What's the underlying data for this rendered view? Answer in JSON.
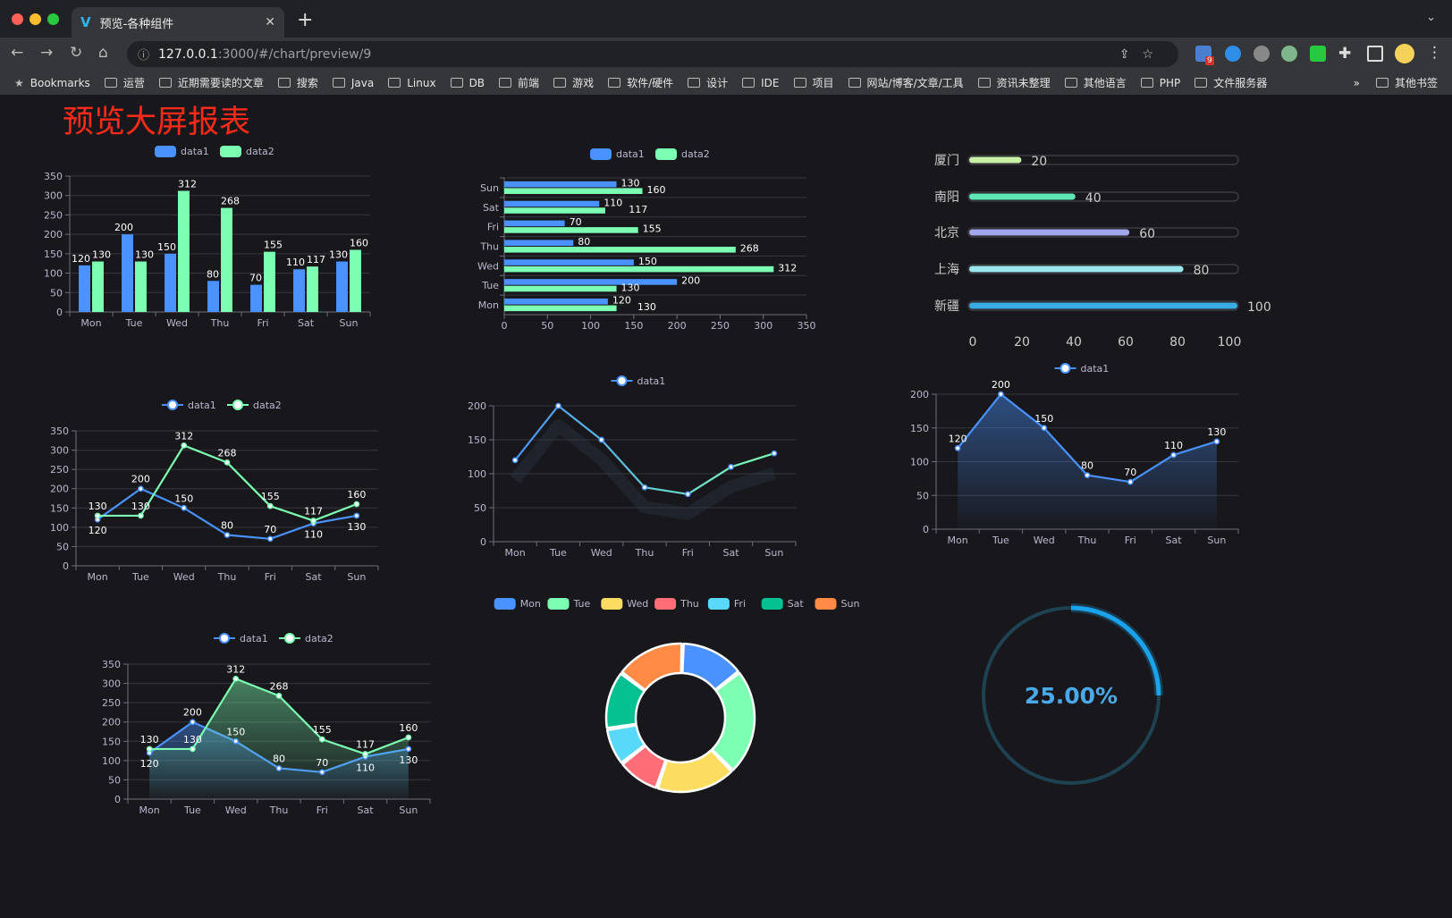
{
  "browser": {
    "tab_title": "预览-各种组件",
    "url_host": "127.0.0.1",
    "url_rest": ":3000/#/chart/preview/9",
    "extension_badge": "9",
    "bookmarks_label": "Bookmarks",
    "bookmarks": [
      "运营",
      "近期需要读的文章",
      "搜索",
      "Java",
      "Linux",
      "DB",
      "前端",
      "游戏",
      "软件/硬件",
      "设计",
      "IDE",
      "项目",
      "网站/博客/文章/工具",
      "资讯未整理",
      "其他语言",
      "PHP",
      "文件服务器"
    ],
    "more": "»",
    "other_bookmarks": "其他书签"
  },
  "page": {
    "title": "预览大屏报表",
    "title_color": "#ff2a1a"
  },
  "chart_data": [
    {
      "type": "bar",
      "orientation": "vertical",
      "categories": [
        "Mon",
        "Tue",
        "Wed",
        "Thu",
        "Fri",
        "Sat",
        "Sun"
      ],
      "series": [
        {
          "name": "data1",
          "values": [
            120,
            200,
            150,
            80,
            70,
            110,
            130
          ],
          "color": "#4992ff"
        },
        {
          "name": "data2",
          "values": [
            130,
            130,
            312,
            268,
            155,
            117,
            160
          ],
          "color": "#7cffb2"
        }
      ],
      "ylim": [
        0,
        350
      ],
      "yticks": [
        0,
        50,
        100,
        150,
        200,
        250,
        300,
        350
      ],
      "legend": "top-center",
      "grid": true,
      "data_labels": true
    },
    {
      "type": "bar",
      "orientation": "horizontal",
      "categories": [
        "Mon",
        "Tue",
        "Wed",
        "Thu",
        "Fri",
        "Sat",
        "Sun"
      ],
      "series": [
        {
          "name": "data1",
          "values": [
            120,
            200,
            150,
            80,
            70,
            110,
            130
          ],
          "color": "#4992ff"
        },
        {
          "name": "data2",
          "values": [
            130,
            130,
            312,
            268,
            155,
            117,
            160
          ],
          "color": "#7cffb2"
        }
      ],
      "xlim": [
        0,
        350
      ],
      "xticks": [
        0,
        50,
        100,
        150,
        200,
        250,
        300,
        350
      ],
      "legend": "top-center",
      "grid": true,
      "data_labels": true
    },
    {
      "type": "bar",
      "orientation": "horizontal",
      "style": "progress",
      "categories": [
        "厦门",
        "南阳",
        "北京",
        "上海",
        "新疆"
      ],
      "values": [
        20,
        40,
        60,
        80,
        100
      ],
      "colors": [
        "#c8f0a8",
        "#5ee6b6",
        "#a2a6ea",
        "#9ae6ee",
        "#3aabe3"
      ],
      "xlim": [
        0,
        100
      ],
      "xticks": [
        0,
        20,
        40,
        60,
        80,
        100
      ],
      "data_labels": true
    },
    {
      "type": "line",
      "categories": [
        "Mon",
        "Tue",
        "Wed",
        "Thu",
        "Fri",
        "Sat",
        "Sun"
      ],
      "series": [
        {
          "name": "data1",
          "values": [
            120,
            200,
            150,
            80,
            70,
            110,
            130
          ],
          "color": "#4992ff"
        },
        {
          "name": "data2",
          "values": [
            130,
            130,
            312,
            268,
            155,
            117,
            160
          ],
          "color": "#7cffb2"
        }
      ],
      "ylim": [
        0,
        350
      ],
      "yticks": [
        0,
        50,
        100,
        150,
        200,
        250,
        300,
        350
      ],
      "legend": "top-center",
      "grid": true,
      "data_labels": true
    },
    {
      "type": "line",
      "categories": [
        "Mon",
        "Tue",
        "Wed",
        "Thu",
        "Fri",
        "Sat",
        "Sun"
      ],
      "series": [
        {
          "name": "data1",
          "values": [
            120,
            200,
            150,
            80,
            70,
            110,
            130
          ],
          "color": "#4992ff",
          "gradient_to": "#7cffb2"
        }
      ],
      "ylim": [
        0,
        200
      ],
      "yticks": [
        0,
        50,
        100,
        150,
        200
      ],
      "legend": "top-center",
      "grid": true,
      "data_labels": false
    },
    {
      "type": "area",
      "categories": [
        "Mon",
        "Tue",
        "Wed",
        "Thu",
        "Fri",
        "Sat",
        "Sun"
      ],
      "series": [
        {
          "name": "data1",
          "values": [
            120,
            200,
            150,
            80,
            70,
            110,
            130
          ],
          "color": "#4992ff"
        }
      ],
      "ylim": [
        0,
        200
      ],
      "yticks": [
        0,
        50,
        100,
        150,
        200
      ],
      "legend": "top-center",
      "grid": true,
      "data_labels": true
    },
    {
      "type": "area",
      "categories": [
        "Mon",
        "Tue",
        "Wed",
        "Thu",
        "Fri",
        "Sat",
        "Sun"
      ],
      "series": [
        {
          "name": "data1",
          "values": [
            120,
            200,
            150,
            80,
            70,
            110,
            130
          ],
          "color": "#4992ff"
        },
        {
          "name": "data2",
          "values": [
            130,
            130,
            312,
            268,
            155,
            117,
            160
          ],
          "color": "#7cffb2"
        }
      ],
      "ylim": [
        0,
        350
      ],
      "yticks": [
        0,
        50,
        100,
        150,
        200,
        250,
        300,
        350
      ],
      "legend": "top-center",
      "grid": true,
      "data_labels": true
    },
    {
      "type": "pie",
      "style": "donut",
      "categories": [
        "Mon",
        "Tue",
        "Wed",
        "Thu",
        "Fri",
        "Sat",
        "Sun"
      ],
      "values": [
        120,
        200,
        150,
        80,
        70,
        110,
        130
      ],
      "colors": [
        "#4992ff",
        "#7cffb2",
        "#fddd60",
        "#ff6e76",
        "#58d9f9",
        "#05c091",
        "#ff8a45"
      ],
      "legend": "top-center"
    },
    {
      "type": "gauge",
      "style": "ring",
      "value": 25,
      "label": "25.00%",
      "color": "#1aa3ea",
      "track_color": "#1e4252"
    }
  ]
}
